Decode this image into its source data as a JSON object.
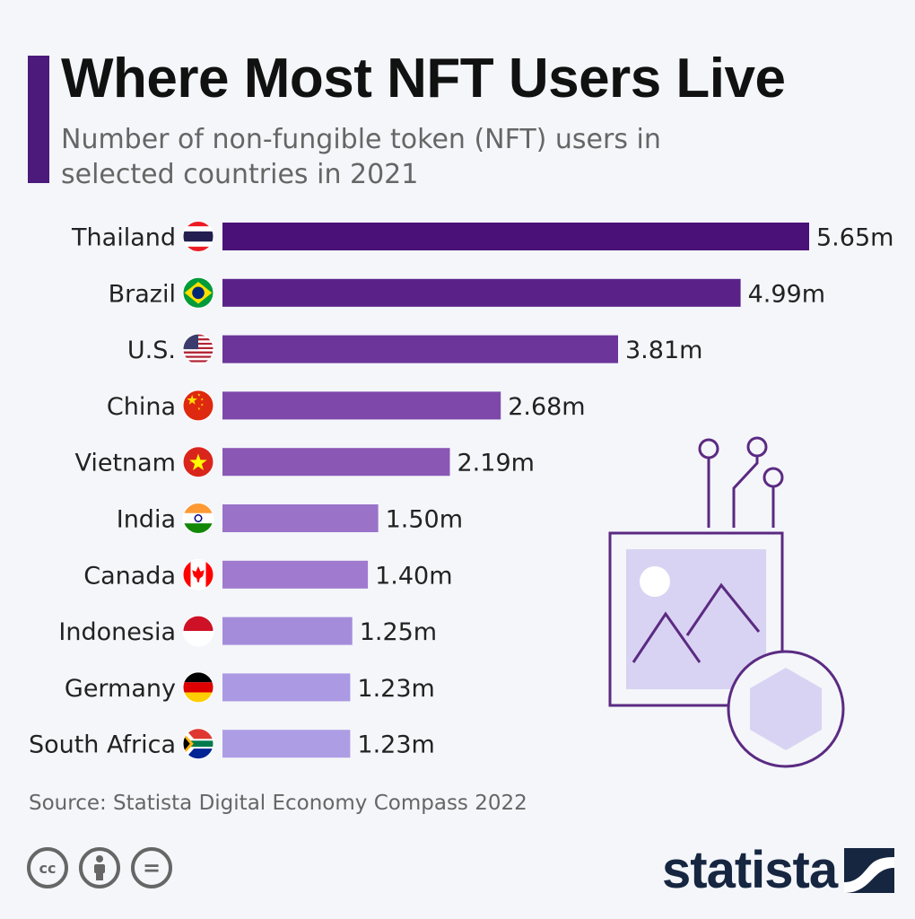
{
  "header": {
    "title": "Where Most NFT Users Live",
    "subtitle": "Number of non-fungible token (NFT) users in selected countries in 2021"
  },
  "chart_data": {
    "type": "bar",
    "orientation": "horizontal",
    "categories": [
      "Thailand",
      "Brazil",
      "U.S.",
      "China",
      "Vietnam",
      "India",
      "Canada",
      "Indonesia",
      "Germany",
      "South Africa"
    ],
    "values": [
      5.65,
      4.99,
      3.81,
      2.68,
      2.19,
      1.5,
      1.4,
      1.25,
      1.23,
      1.23
    ],
    "value_labels": [
      "5.65m",
      "4.99m",
      "3.81m",
      "2.68m",
      "2.19m",
      "1.50m",
      "1.40m",
      "1.25m",
      "1.23m",
      "1.23m"
    ],
    "unit_suffix": "m",
    "xlim": [
      0,
      5.65
    ],
    "grid": false,
    "bar_colors": [
      "#4a1279",
      "#5a2289",
      "#6c3599",
      "#7e48aa",
      "#8a57b5",
      "#9a73c9",
      "#9f7ace",
      "#a58cda",
      "#ab99e3",
      "#ad9de5"
    ],
    "flag_icons": [
      "thailand-flag-icon",
      "brazil-flag-icon",
      "us-flag-icon",
      "china-flag-icon",
      "vietnam-flag-icon",
      "india-flag-icon",
      "canada-flag-icon",
      "indonesia-flag-icon",
      "germany-flag-icon",
      "south-africa-flag-icon"
    ]
  },
  "footer": {
    "source": "Source: Statista Digital Economy Compass 2022",
    "license_icons": [
      "cc-icon",
      "attribution-icon",
      "no-derivatives-icon"
    ],
    "cc_label": "cc",
    "nd_label": "=",
    "logo": "statista"
  },
  "colors": {
    "accent": "#4b1a7a",
    "illustration_stroke": "#5b2a82",
    "illustration_fill": "#d8d3f2",
    "logo": "#162640"
  }
}
